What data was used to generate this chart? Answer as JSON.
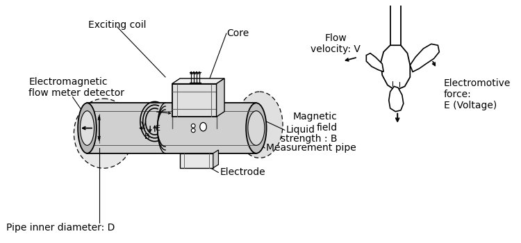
{
  "bg_color": "#ffffff",
  "lc": "#000000",
  "gray1": "#c8c8c8",
  "gray2": "#d8d8d8",
  "gray3": "#e8e8e8",
  "labels": {
    "exciting_coil": "Exciting coil",
    "core": "Core",
    "em_detector": "Electromagnetic\nflow meter detector",
    "liquid": "Liquid",
    "meas_pipe": "Measurement pipe",
    "electrode": "Electrode",
    "pipe_diam": "Pipe inner diameter: D",
    "flow_vel": "Flow\nvelocity: V",
    "mag_field": "Magnetic\nfield\nstrength : B",
    "emf": "Electromotive\nforce:\nE (Voltage)"
  },
  "fs": 9,
  "fs_label": 10
}
